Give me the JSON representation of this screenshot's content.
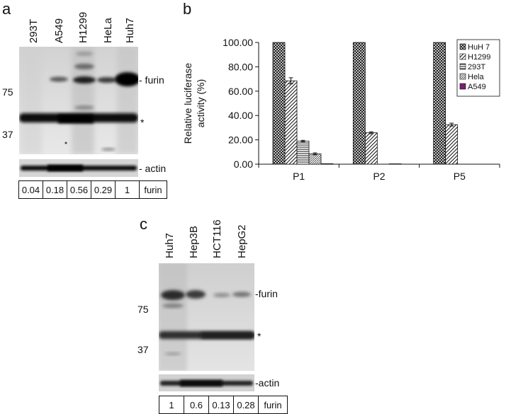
{
  "panel_a": {
    "letter": "a",
    "lanes": [
      "293T",
      "A549",
      "H1299",
      "HeLa",
      "Huh7"
    ],
    "markers": [
      "75",
      "37"
    ],
    "band_labels": {
      "furin": "- furin",
      "nonspecific": "*",
      "actin": "- actin"
    },
    "quant": {
      "values": [
        "0.04",
        "0.18",
        "0.56",
        "0.29",
        "1"
      ],
      "label": "furin"
    }
  },
  "panel_b": {
    "letter": "b",
    "chart_data": {
      "type": "bar",
      "categories": [
        "P1",
        "P2",
        "P5"
      ],
      "ylabel": "Relative luciferase activity (%)",
      "ylabel_lines": [
        "Relative luciferase",
        "activity (%)"
      ],
      "xlabel": "",
      "ylim": [
        0,
        100
      ],
      "yticks": [
        "0.00",
        "20.00",
        "40.00",
        "60.00",
        "80.00",
        "100.00"
      ],
      "legend_position": "top-right",
      "series": [
        {
          "name": "HuH 7",
          "values": [
            100,
            100,
            100
          ],
          "errors": [
            0,
            0,
            0
          ]
        },
        {
          "name": "H1299",
          "values": [
            68.5,
            25.8,
            32.5
          ],
          "errors": [
            2.5,
            0.8,
            1.2
          ]
        },
        {
          "name": "293T",
          "values": [
            19,
            0,
            0
          ],
          "errors": [
            0.6,
            0,
            0
          ]
        },
        {
          "name": "Hela",
          "values": [
            8.5,
            0.3,
            0
          ],
          "errors": [
            0.8,
            0,
            0
          ]
        },
        {
          "name": "A549",
          "values": [
            0.4,
            0,
            0
          ],
          "errors": [
            0,
            0,
            0
          ]
        }
      ]
    }
  },
  "panel_c": {
    "letter": "c",
    "lanes": [
      "Huh7",
      "Hep3B",
      "HCT116",
      "HepG2"
    ],
    "markers": [
      "75",
      "37"
    ],
    "band_labels": {
      "furin": "-furin",
      "nonspecific": "*",
      "actin": "-actin"
    },
    "quant": {
      "values": [
        "1",
        "0.6",
        "0.13",
        "0.28"
      ],
      "label": "furin"
    }
  }
}
